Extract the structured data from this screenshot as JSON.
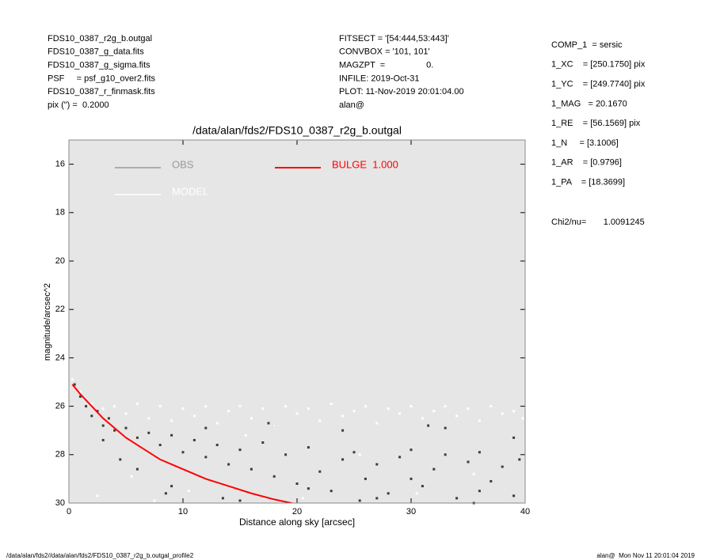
{
  "header_left": [
    "FDS10_0387_r2g_b.outgal",
    "FDS10_0387_g_data.fits",
    "FDS10_0387_g_sigma.fits",
    "PSF     = psf_g10_over2.fits",
    "FDS10_0387_r_finmask.fits",
    "pix (\") =  0.2000"
  ],
  "header_middle": [
    "FITSECT = '[54:444,53:443]'",
    "CONVBOX = '101, 101'",
    "MAGZPT  =                 0.",
    "INFILE: 2019-Oct-31",
    "PLOT: 11-Nov-2019 20:01:04.00",
    "alan@"
  ],
  "header_right": [
    "COMP_1  = sersic",
    "1_XC    = [250.1750] pix",
    "1_YC    = [249.7740] pix",
    "1_MAG   = 20.1670",
    "1_RE    = [56.1569] pix",
    "1_N     = [3.1006]",
    "1_AR    = [0.9796]",
    "1_PA    = [18.3699]"
  ],
  "chi2": "Chi2/nu=       1.0091245",
  "footer_left": "/data/alan/fds2//data/alan/fds2/FDS10_0387_r2g_b.outgal_profile2",
  "footer_right": "alan@  Mon Nov 11 20:01:04 2019",
  "chart_data": {
    "type": "scatter",
    "title": "/data/alan/fds2/FDS10_0387_r2g_b.outgal",
    "x_label": "Distance along sky [arcsec]",
    "y_label": "magnitude/arcsec^2",
    "xlim": [
      0,
      40
    ],
    "xticks": [
      0,
      10,
      20,
      30,
      40
    ],
    "ylim": [
      30,
      15
    ],
    "yticks": [
      16,
      18,
      20,
      22,
      24,
      26,
      28,
      30
    ],
    "series": [
      {
        "name": "OBS",
        "color": "#999999",
        "marker_color": "#3c3c3c",
        "mode": "markers",
        "x": [
          0.5,
          1,
          1.5,
          2,
          2.5,
          3,
          3.5,
          4,
          5,
          6,
          7,
          8,
          9,
          10,
          11,
          12,
          13,
          14,
          15,
          16,
          17,
          18,
          19,
          20,
          21,
          22,
          23,
          24,
          25,
          26,
          27,
          28,
          29,
          30,
          31,
          32,
          33,
          34,
          35,
          36,
          37,
          38,
          39,
          39.5,
          3,
          6,
          9,
          12,
          15,
          18,
          21,
          24,
          27,
          30,
          33,
          36,
          39,
          4.5,
          8.5,
          13.5,
          17.5,
          25.5,
          31.5,
          35.5
        ],
        "values": [
          25.1,
          25.6,
          26.0,
          26.4,
          26.2,
          26.8,
          26.5,
          27.0,
          26.9,
          27.3,
          27.1,
          27.6,
          27.2,
          27.9,
          27.4,
          28.1,
          27.6,
          28.4,
          27.8,
          28.6,
          27.5,
          28.9,
          28.0,
          29.2,
          27.7,
          28.7,
          29.5,
          28.2,
          27.9,
          29.0,
          28.4,
          29.6,
          28.1,
          27.8,
          29.3,
          28.6,
          28.0,
          29.8,
          28.3,
          27.9,
          29.1,
          28.5,
          29.7,
          28.2,
          27.4,
          28.6,
          29.3,
          26.9,
          29.9,
          26.8,
          29.4,
          27.0,
          29.8,
          29.0,
          26.9,
          29.5,
          27.3,
          28.2,
          29.6,
          29.8,
          26.7,
          29.9,
          26.8,
          30.0
        ]
      },
      {
        "name": "MODEL",
        "color": "#ffffff",
        "marker_color": "#ffffff",
        "mode": "markers",
        "x": [
          0.3,
          1,
          2,
          3,
          4,
          5,
          6,
          7,
          8,
          9,
          10,
          11,
          12,
          13,
          14,
          15,
          16,
          17,
          18,
          19,
          20,
          21,
          22,
          23,
          24,
          25,
          26,
          27,
          28,
          29,
          30,
          31,
          32,
          33,
          34,
          35,
          36,
          37,
          38,
          39,
          39.8,
          5.5,
          10.5,
          15.5,
          20.5,
          25.5,
          30.5,
          35.5,
          2.5,
          7.5
        ],
        "values": [
          24.9,
          25.4,
          25.9,
          26.1,
          26.0,
          26.3,
          25.9,
          26.5,
          26.0,
          26.6,
          26.1,
          26.4,
          26.0,
          26.7,
          26.2,
          26.0,
          26.5,
          26.1,
          26.8,
          26.0,
          26.3,
          26.1,
          26.6,
          25.9,
          26.4,
          26.2,
          26.0,
          26.7,
          26.1,
          26.3,
          26.0,
          26.5,
          26.2,
          26.0,
          26.4,
          26.1,
          26.6,
          26.0,
          26.3,
          26.2,
          26.5,
          28.9,
          29.5,
          27.2,
          29.8,
          28.0,
          29.6,
          28.8,
          29.7,
          29.9
        ]
      },
      {
        "name": "BULGE  1.000",
        "color": "#ff0000",
        "mode": "lines",
        "x": [
          0.3,
          1,
          2,
          3,
          4,
          5,
          6,
          8,
          10,
          12,
          14,
          16,
          18,
          20
        ],
        "values": [
          25.1,
          25.5,
          26.0,
          26.5,
          26.9,
          27.3,
          27.6,
          28.2,
          28.6,
          29.0,
          29.3,
          29.6,
          29.85,
          30.05
        ]
      }
    ]
  }
}
